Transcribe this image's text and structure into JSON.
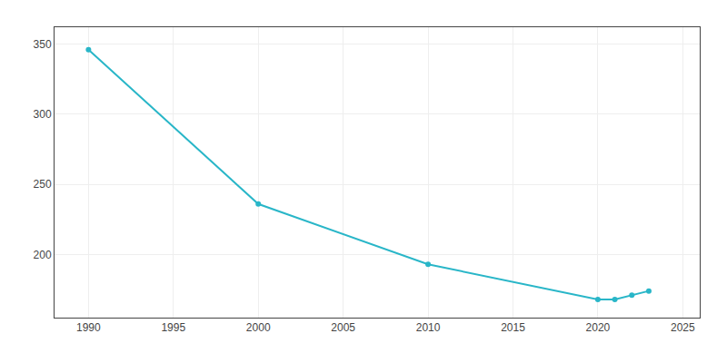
{
  "chart_data": {
    "type": "line",
    "x": [
      1990,
      2000,
      2010,
      2020,
      2021,
      2022,
      2023
    ],
    "values": [
      346,
      236,
      193,
      168,
      168,
      171,
      174
    ],
    "color": "#29b6c8",
    "marker": "circle",
    "xlim": [
      1988,
      2026
    ],
    "xticks": [
      1990,
      1995,
      2000,
      2005,
      2010,
      2015,
      2020,
      2025
    ],
    "ylim": [
      155,
      362
    ],
    "yticks": [
      200,
      250,
      300,
      350
    ],
    "grid": true
  }
}
